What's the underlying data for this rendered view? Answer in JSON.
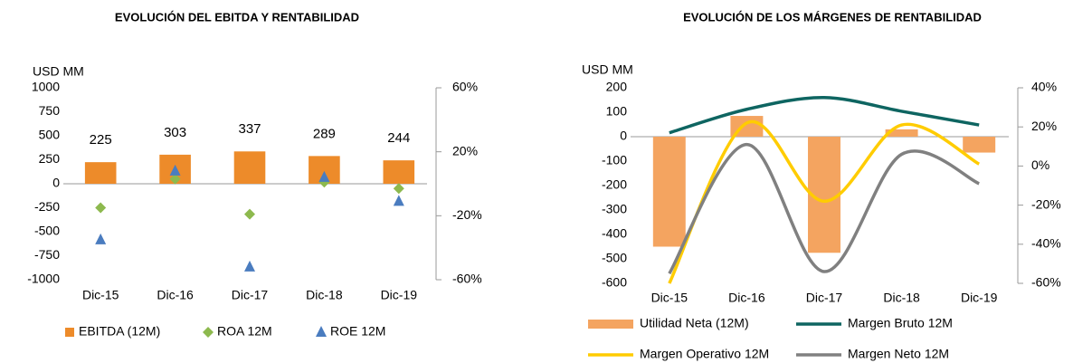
{
  "chart_data": [
    {
      "type": "combo",
      "title": "EVOLUCIÓN DEL EBITDA Y RENTABILIDAD",
      "ylabel": "USD MM",
      "categories": [
        "Dic-15",
        "Dic-16",
        "Dic-17",
        "Dic-18",
        "Dic-19"
      ],
      "ylim": [
        -1000,
        1000
      ],
      "yticks": [
        -1000,
        -750,
        -500,
        -250,
        0,
        250,
        500,
        750,
        1000
      ],
      "y2lim": [
        -60,
        60
      ],
      "y2ticks": [
        {
          "value": -60,
          "label": "-60%"
        },
        {
          "value": -20,
          "label": "-20%"
        },
        {
          "value": 20,
          "label": "20%"
        },
        {
          "value": 60,
          "label": "60%"
        }
      ],
      "series": [
        {
          "name": "EBITDA (12M)",
          "type": "bar",
          "color": "#ed8b2a",
          "values": [
            225,
            303,
            337,
            289,
            244
          ],
          "data_labels": true
        },
        {
          "name": "ROA 12M",
          "type": "scatter",
          "marker": "diamond",
          "color": "#8db94e",
          "axis": "y2",
          "values": [
            -15,
            3,
            -19,
            1,
            -3
          ]
        },
        {
          "name": "ROE 12M",
          "type": "scatter",
          "marker": "triangle",
          "color": "#4a7cbf",
          "axis": "y2",
          "values": [
            -35,
            8,
            -52,
            4,
            -11
          ]
        }
      ]
    },
    {
      "type": "combo",
      "title": "EVOLUCIÓN DE LOS MÁRGENES DE RENTABILIDAD",
      "ylabel": "USD MM",
      "categories": [
        "Dic-15",
        "Dic-16",
        "Dic-17",
        "Dic-18",
        "Dic-19"
      ],
      "ylim": [
        -600,
        200
      ],
      "yticks": [
        -600,
        -500,
        -400,
        -300,
        -200,
        -100,
        0,
        100,
        200
      ],
      "y2lim": [
        -60,
        40
      ],
      "y2ticks": [
        {
          "value": -60,
          "label": "-60%"
        },
        {
          "value": -40,
          "label": "-40%"
        },
        {
          "value": -20,
          "label": "-20%"
        },
        {
          "value": 0,
          "label": "0%"
        },
        {
          "value": 20,
          "label": "20%"
        },
        {
          "value": 40,
          "label": "40%"
        }
      ],
      "series": [
        {
          "name": "Utilidad Neta (12M)",
          "type": "bar",
          "color": "#f4a460",
          "values": [
            -450,
            85,
            -475,
            30,
            -65
          ]
        },
        {
          "name": "Margen Bruto 12M",
          "type": "line",
          "color": "#0e6561",
          "axis": "y2",
          "values": [
            17,
            29,
            35,
            28,
            21
          ]
        },
        {
          "name": "Margen Operativo 12M",
          "type": "line",
          "color": "#ffcc00",
          "axis": "y2",
          "values": [
            -60,
            22,
            -18,
            21,
            1
          ]
        },
        {
          "name": "Margen Neto 12M",
          "type": "line",
          "color": "#808080",
          "axis": "y2",
          "values": [
            -55,
            11,
            -54,
            6,
            -9
          ]
        }
      ]
    }
  ]
}
